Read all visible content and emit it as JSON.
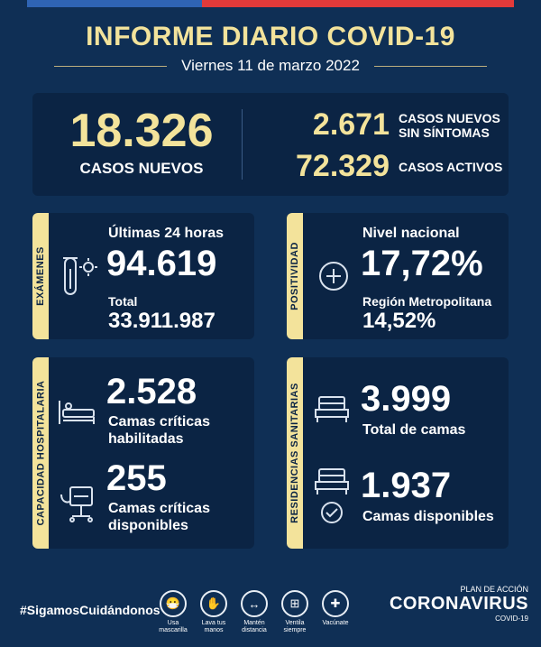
{
  "header": {
    "title": "INFORME DIARIO COVID-19",
    "date": "Viernes 11 de marzo 2022"
  },
  "summary": {
    "new_cases": "18.326",
    "new_cases_label": "CASOS NUEVOS",
    "asymptomatic": "2.671",
    "asymptomatic_label_1": "CASOS NUEVOS",
    "asymptomatic_label_2": "SIN SÍNTOMAS",
    "active": "72.329",
    "active_label": "CASOS ACTIVOS"
  },
  "examenes": {
    "tab": "EXÁMENES",
    "last24_label": "Últimas 24 horas",
    "last24_value": "94.619",
    "total_label": "Total",
    "total_value": "33.911.987"
  },
  "positividad": {
    "tab": "POSITIVIDAD",
    "national_label": "Nivel nacional",
    "national_value": "17,72%",
    "rm_label": "Región Metropolitana",
    "rm_value": "14,52%"
  },
  "capacidad": {
    "tab": "CAPACIDAD HOSPITALARIA",
    "enabled_value": "2.528",
    "enabled_label_1": "Camas críticas",
    "enabled_label_2": "habilitadas",
    "available_value": "255",
    "available_label_1": "Camas críticas",
    "available_label_2": "disponibles"
  },
  "residencias": {
    "tab": "RESIDENCIAS SANITARIAS",
    "total_value": "3.999",
    "total_label": "Total de camas",
    "available_value": "1.937",
    "available_label": "Camas disponibles"
  },
  "footer": {
    "hashtag": "#SigamosCuidándonos",
    "care": [
      {
        "line1": "Usa",
        "line2": "mascarilla"
      },
      {
        "line1": "Lava tus",
        "line2": "manos"
      },
      {
        "line1": "Mantén",
        "line2": "distancia"
      },
      {
        "line1": "Ventila",
        "line2": "siempre"
      },
      {
        "line1": "Vacúnate",
        "line2": ""
      }
    ],
    "plan": "PLAN DE ACCIÓN",
    "corona": "CORONAVIRUS",
    "covid": "COVID-19"
  },
  "colors": {
    "background": "#0f2f55",
    "panel": "#0b2444",
    "accent": "#f3e39b"
  }
}
